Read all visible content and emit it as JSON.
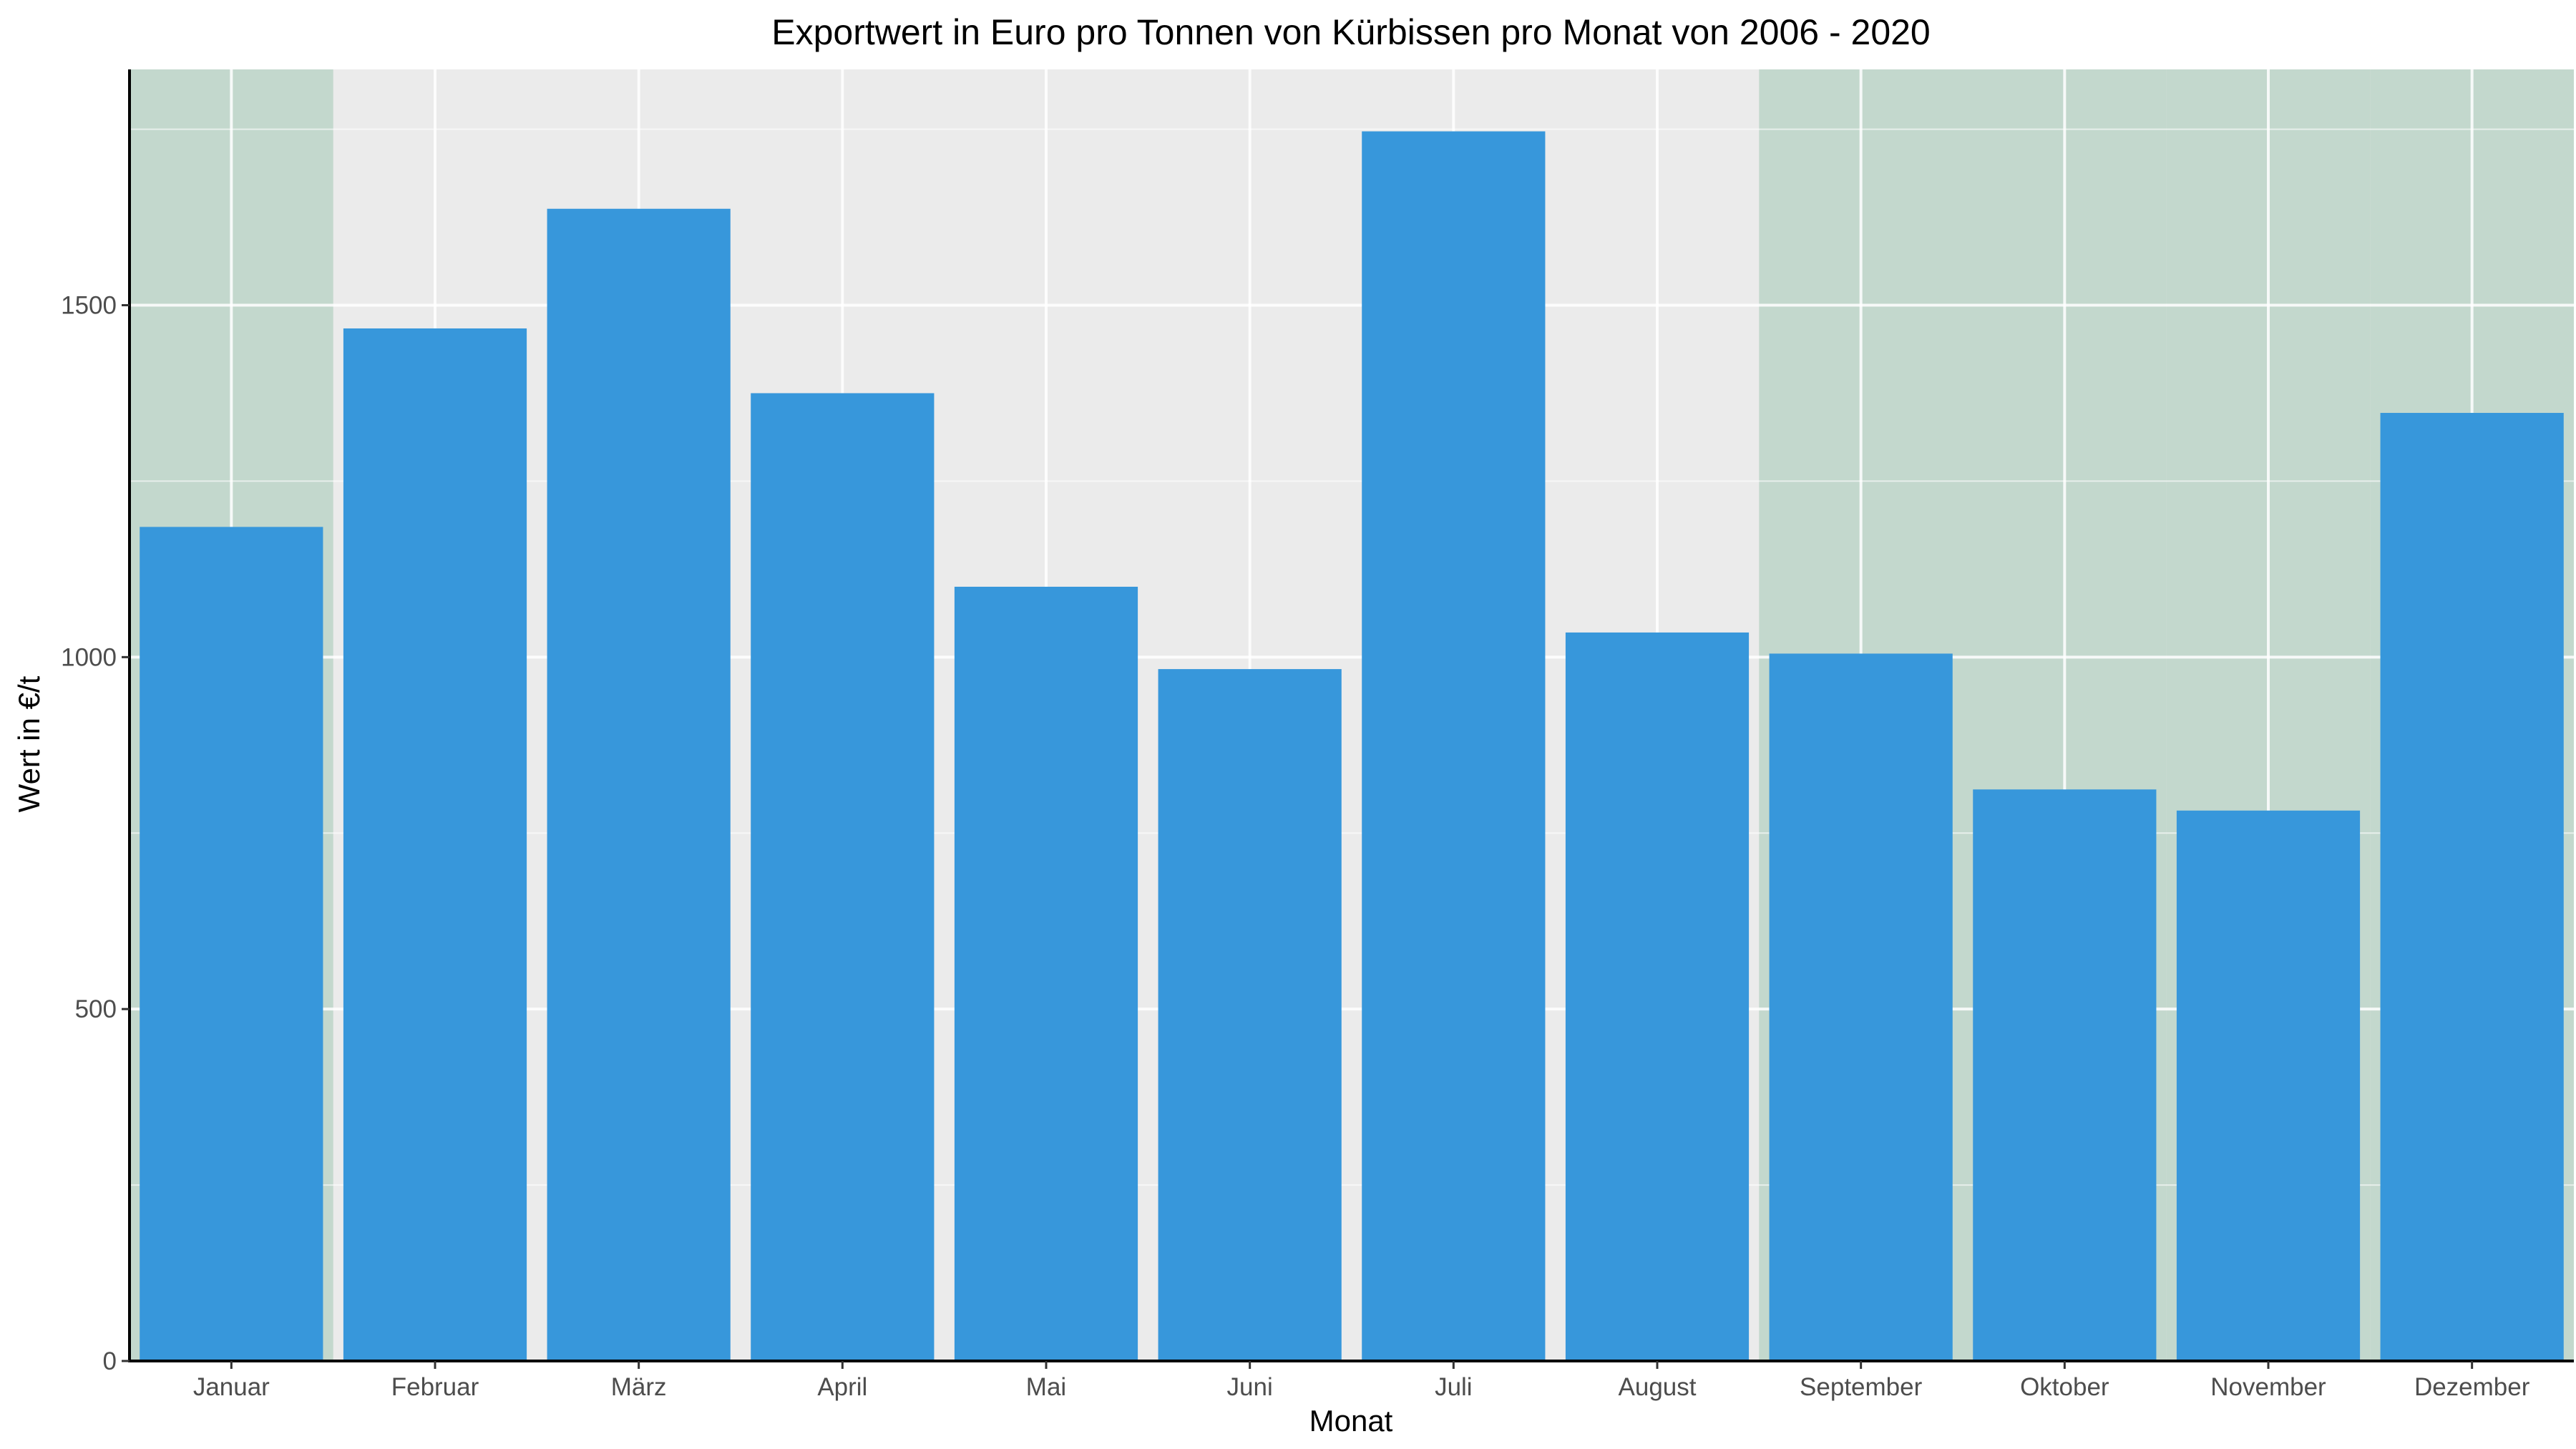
{
  "colors": {
    "panel_background": "#ebebeb",
    "grid_line": "#ffffff",
    "highlight_band": "#c3d8cd",
    "bar": "#3797db",
    "axis_line": "#000000",
    "tick_text": "#4d4d4d"
  },
  "chart_data": {
    "type": "bar",
    "title": "Exportwert in Euro pro Tonnen von Kürbissen pro Monat von 2006 - 2020",
    "xlabel": "Monat",
    "ylabel": "Wert in €/t",
    "categories": [
      "Januar",
      "Februar",
      "März",
      "April",
      "Mai",
      "Juni",
      "Juli",
      "August",
      "September",
      "Oktober",
      "November",
      "Dezember"
    ],
    "values": [
      1185,
      1467,
      1637,
      1375,
      1100,
      983,
      1747,
      1035,
      1005,
      812,
      782,
      1347
    ],
    "ylim": [
      0,
      1835
    ],
    "yticks": [
      0,
      500,
      1000,
      1500
    ],
    "grid": true,
    "legend": "none",
    "highlighted_categories": [
      "Januar",
      "September",
      "Oktober",
      "November",
      "Dezember"
    ]
  }
}
